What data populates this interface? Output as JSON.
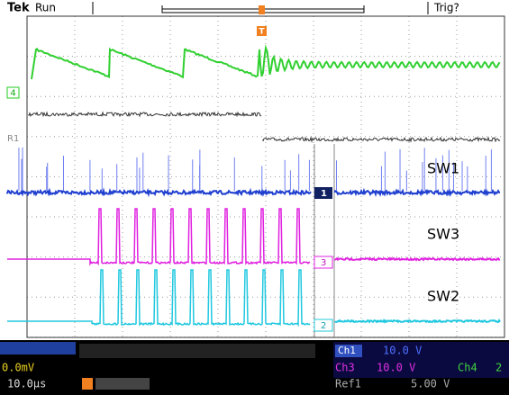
{
  "header": {
    "brand": "Tek",
    "status": "Run",
    "trigger_status": "Trig?"
  },
  "markers": {
    "trigger": "T",
    "ch4": "4",
    "ref1": "R1",
    "ch1": "1",
    "ch3": "3",
    "ch2": "2"
  },
  "labels": {
    "sw1": "SW1",
    "sw3": "SW3",
    "sw2": "SW2"
  },
  "status_bar": {
    "offset": "0.0mV",
    "timebase": "10.0µs",
    "ch1": "Ch1",
    "ch1_scale": "10.0 V",
    "ch3": "Ch3",
    "ch3_scale": "10.0 V",
    "ch4": "Ch4",
    "ch4_scale": "2",
    "ref1": "Ref1",
    "ref1_scale": "5.00 V"
  }
}
